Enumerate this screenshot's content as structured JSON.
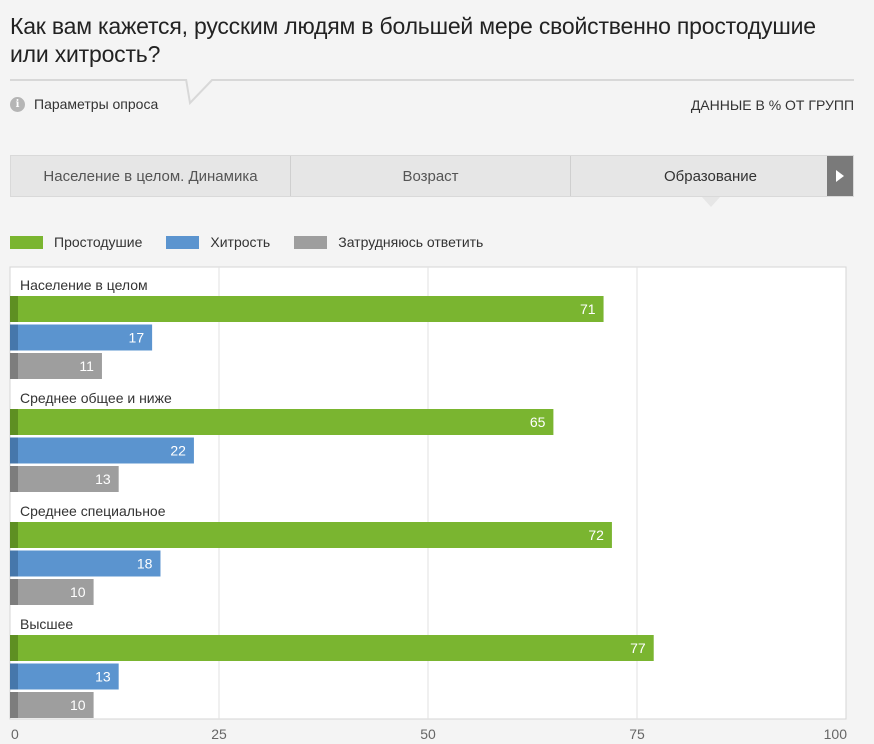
{
  "title": "Как вам кажется, русским людям в большей мере свойственно простодушие или хитрость?",
  "params_label": "Параметры опроса",
  "units_label": "ДАННЫЕ В % ОТ ГРУПП",
  "tabs": [
    {
      "label": "Население в целом. Динамика",
      "active": false
    },
    {
      "label": "Возраст",
      "active": false
    },
    {
      "label": "Образование",
      "active": true
    }
  ],
  "colors": {
    "green": "#7ab530",
    "blue": "#5b94cf",
    "gray": "#9e9e9e"
  },
  "chart_data": {
    "type": "bar",
    "orientation": "horizontal",
    "categories": [
      "Население в целом",
      "Среднее общее и ниже",
      "Среднее специальное",
      "Высшее"
    ],
    "series": [
      {
        "name": "Простодушие",
        "color": "#7ab530",
        "values": [
          71,
          65,
          72,
          77
        ]
      },
      {
        "name": "Хитрость",
        "color": "#5b94cf",
        "values": [
          17,
          22,
          18,
          13
        ]
      },
      {
        "name": "Затрудняюсь ответить",
        "color": "#9e9e9e",
        "values": [
          11,
          13,
          10,
          10
        ]
      }
    ],
    "xlim": [
      0,
      100
    ],
    "xticks": [
      0,
      25,
      50,
      75,
      100
    ],
    "grid": true,
    "legend_position": "top-left"
  }
}
